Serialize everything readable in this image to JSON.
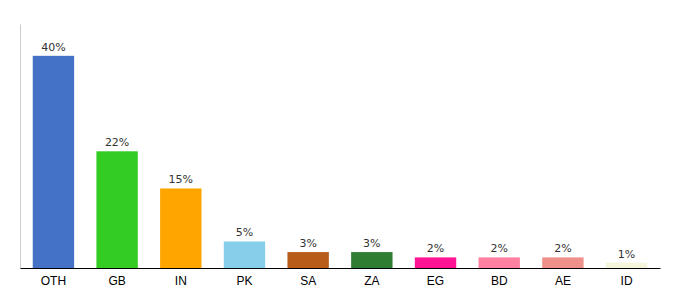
{
  "chart_data": {
    "type": "bar",
    "categories": [
      "OTH",
      "GB",
      "IN",
      "PK",
      "SA",
      "ZA",
      "EG",
      "BD",
      "AE",
      "ID"
    ],
    "values": [
      40,
      22,
      15,
      5,
      3,
      3,
      2,
      2,
      2,
      1
    ],
    "value_labels": [
      "40%",
      "22%",
      "15%",
      "5%",
      "3%",
      "3%",
      "2%",
      "2%",
      "2%",
      "1%"
    ],
    "colors": [
      "#4472C4",
      "#33CC22",
      "#FFA500",
      "#87CEEB",
      "#B85C1A",
      "#2E7D32",
      "#FF1493",
      "#FF80A0",
      "#F0908A",
      "#F5F5DC"
    ],
    "ylim": [
      0,
      46
    ],
    "data_labels": true,
    "tick_labels": "x",
    "grid": false
  }
}
